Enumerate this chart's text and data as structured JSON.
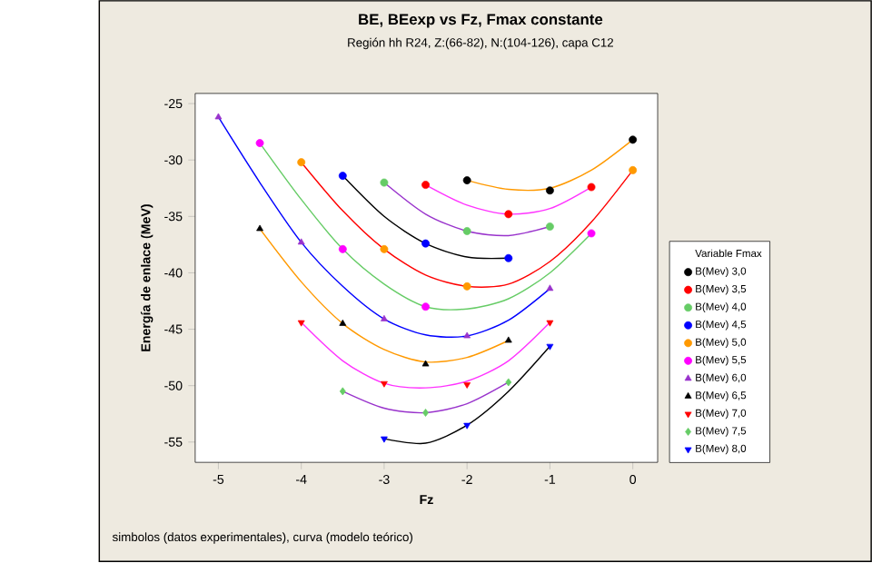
{
  "chart_data": {
    "type": "scatter",
    "title": "BE, BEexp vs Fz, Fmax constante",
    "subtitle": "Región hh R24, Z:(66-82), N:(104-126), capa C12",
    "xlabel": "Fz",
    "ylabel": "Energía de enlace (MeV)",
    "legend_title": "Variable   Fmax",
    "legend": "right",
    "grid": false,
    "xlim": [
      -5.28,
      0.3
    ],
    "ylim": [
      -56.8,
      -24.1
    ],
    "xticks": [
      -5,
      -4,
      -3,
      -2,
      -1,
      0
    ],
    "yticks": [
      -55,
      -50,
      -45,
      -40,
      -35,
      -30,
      -25
    ],
    "annotations": [
      "simbolos (datos experimentales), curva (modelo teórico)"
    ],
    "series": [
      {
        "type": "line",
        "color": "#ff9900",
        "x": [
          -2,
          -1.5,
          -1,
          -0.5,
          0
        ],
        "values": [
          -31.8,
          -32.6,
          -32.5,
          -30.9,
          -28.2
        ]
      },
      {
        "type": "line",
        "color": "#ff33ff",
        "x": [
          -2.5,
          -2,
          -1.5,
          -1,
          -0.5
        ],
        "values": [
          -32.2,
          -34.0,
          -34.8,
          -34.3,
          -32.4
        ]
      },
      {
        "type": "line",
        "color": "#9933cc",
        "x": [
          -3,
          -2.5,
          -2,
          -1.5,
          -1
        ],
        "values": [
          -32.0,
          -34.8,
          -36.3,
          -36.7,
          -35.9
        ]
      },
      {
        "type": "line",
        "color": "#000000",
        "x": [
          -3.5,
          -3,
          -2.5,
          -2,
          -1.5
        ],
        "values": [
          -31.4,
          -35.0,
          -37.4,
          -38.6,
          -38.7
        ]
      },
      {
        "type": "line",
        "color": "#ff0000",
        "x": [
          -4,
          -3.5,
          -3,
          -2.5,
          -2,
          -1.5,
          -1,
          -0.5,
          0
        ],
        "values": [
          -30.2,
          -34.5,
          -37.9,
          -40.2,
          -41.2,
          -41.0,
          -39.0,
          -35.5,
          -30.9
        ]
      },
      {
        "type": "line",
        "color": "#66cc66",
        "x": [
          -4.5,
          -4,
          -3.5,
          -3,
          -2.5,
          -2,
          -1.5,
          -1,
          -0.5
        ],
        "values": [
          -28.5,
          -33.5,
          -37.9,
          -41.0,
          -43.0,
          -43.2,
          -42.3,
          -40.0,
          -36.5
        ]
      },
      {
        "type": "line",
        "color": "#0000ff",
        "x": [
          -5,
          -4.5,
          -4,
          -3.5,
          -3,
          -2.5,
          -2,
          -1.5,
          -1
        ],
        "values": [
          -26.2,
          -32.0,
          -37.3,
          -41.2,
          -44.1,
          -45.5,
          -45.6,
          -44.2,
          -41.4
        ]
      },
      {
        "type": "line",
        "color": "#ff9900",
        "x": [
          -4.5,
          -4,
          -3.5,
          -3,
          -2.5,
          -2,
          -1.5
        ],
        "values": [
          -36.1,
          -40.8,
          -44.5,
          -46.8,
          -47.9,
          -47.5,
          -46.0
        ]
      },
      {
        "type": "line",
        "color": "#ff33ff",
        "x": [
          -4,
          -3.5,
          -3,
          -2.5,
          -2,
          -1.5,
          -1
        ],
        "values": [
          -44.4,
          -47.8,
          -49.8,
          -50.2,
          -49.6,
          -47.8,
          -44.4
        ]
      },
      {
        "type": "line",
        "color": "#9933cc",
        "x": [
          -3.5,
          -3,
          -2.5,
          -2,
          -1.5
        ],
        "values": [
          -50.5,
          -52.0,
          -52.4,
          -51.6,
          -49.7
        ]
      },
      {
        "type": "line",
        "color": "#000000",
        "x": [
          -3,
          -2.5,
          -2,
          -1.5,
          -1
        ],
        "values": [
          -54.7,
          -55.1,
          -53.5,
          -50.5,
          -46.5
        ]
      },
      {
        "name": "B(Mev)   3,0",
        "marker": "circle",
        "color": "#000000",
        "x": [
          -2,
          -1,
          0
        ],
        "values": [
          -31.8,
          -32.7,
          -28.2
        ]
      },
      {
        "name": "B(Mev)   3,5",
        "marker": "circle",
        "color": "#ff0000",
        "x": [
          -2.5,
          -1.5,
          -0.5
        ],
        "values": [
          -32.2,
          -34.8,
          -32.4
        ]
      },
      {
        "name": "B(Mev)   4,0",
        "marker": "circle",
        "color": "#66cc66",
        "x": [
          -3,
          -2,
          -1
        ],
        "values": [
          -32.0,
          -36.3,
          -35.9
        ]
      },
      {
        "name": "B(Mev)   4,5",
        "marker": "circle",
        "color": "#0000ff",
        "x": [
          -3.5,
          -2.5,
          -1.5
        ],
        "values": [
          -31.4,
          -37.4,
          -38.7
        ]
      },
      {
        "name": "B(Mev)   5,0",
        "marker": "circle",
        "color": "#ff9900",
        "x": [
          -4,
          -3,
          -2,
          0
        ],
        "values": [
          -30.2,
          -37.9,
          -41.2,
          -30.9
        ]
      },
      {
        "name": "B(Mev)   5,5",
        "marker": "circle",
        "color": "#ff00ff",
        "x": [
          -4.5,
          -3.5,
          -2.5,
          -0.5
        ],
        "values": [
          -28.5,
          -37.9,
          -43.0,
          -36.5
        ]
      },
      {
        "name": "B(Mev)   6,0",
        "marker": "triangle",
        "color": "#9933cc",
        "x": [
          -5,
          -4,
          -3,
          -2,
          -1
        ],
        "values": [
          -26.2,
          -37.3,
          -44.1,
          -45.6,
          -41.4
        ]
      },
      {
        "name": "B(Mev)   6,5",
        "marker": "triangle",
        "color": "#000000",
        "x": [
          -4.5,
          -3.5,
          -2.5,
          -1.5
        ],
        "values": [
          -36.1,
          -44.5,
          -48.1,
          -46.0
        ]
      },
      {
        "name": "B(Mev)   7,0",
        "marker": "triangle down",
        "color": "#ff0000",
        "x": [
          -4,
          -3,
          -2,
          -1
        ],
        "values": [
          -44.4,
          -49.8,
          -49.9,
          -44.4
        ]
      },
      {
        "name": "B(Mev)   7,5",
        "marker": "diamond",
        "color": "#66cc66",
        "x": [
          -3.5,
          -2.5,
          -1.5
        ],
        "values": [
          -50.5,
          -52.4,
          -49.7
        ]
      },
      {
        "name": "B(Mev)   8,0",
        "marker": "triangle down",
        "color": "#0000ff",
        "x": [
          -3,
          -2,
          -1
        ],
        "values": [
          -54.7,
          -53.5,
          -46.5
        ]
      }
    ]
  }
}
